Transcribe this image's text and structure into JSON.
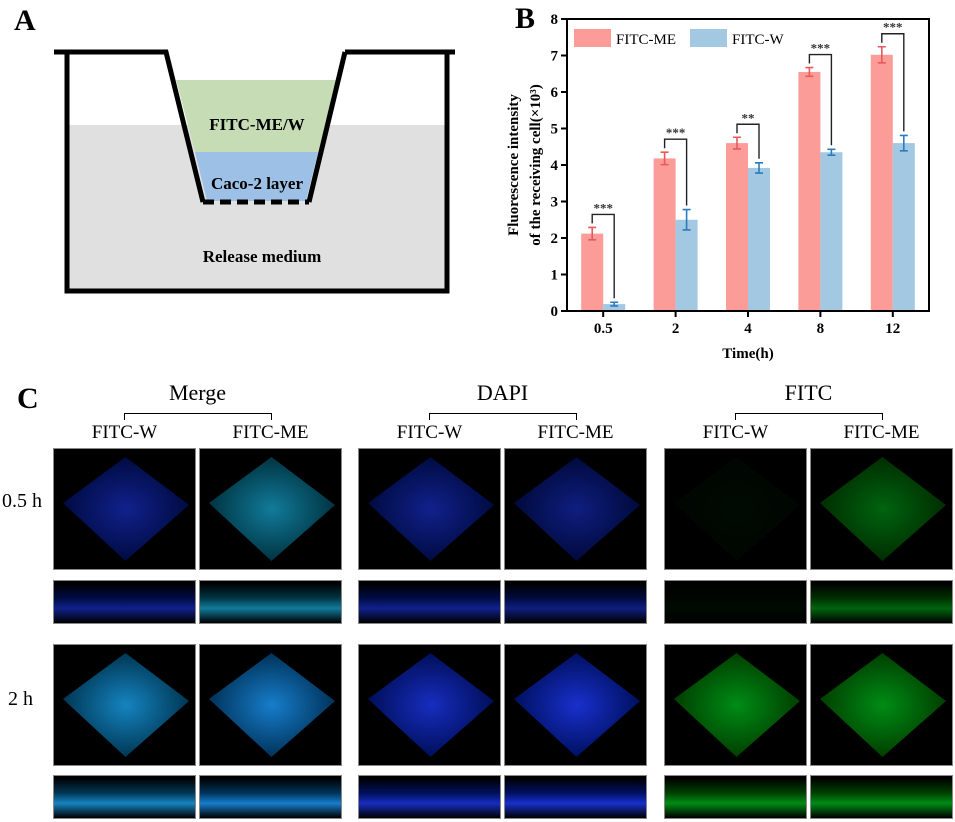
{
  "panel_a": {
    "letter": "A",
    "labels": {
      "donor": "FITC-ME/W",
      "cells": "Caco-2 layer",
      "receiver": "Release medium"
    },
    "colors": {
      "donor": "#c5dcb5",
      "cells": "#9dc0e6",
      "receiver": "#e0e0e0"
    }
  },
  "panel_b": {
    "letter": "B"
  },
  "chart_data": {
    "type": "bar",
    "categories": [
      "0.5",
      "2",
      "4",
      "8",
      "12"
    ],
    "series": [
      {
        "name": "FITC-ME",
        "color": "#fb9c98",
        "errcolor": "#e8595a",
        "values": [
          2.12,
          4.18,
          4.6,
          6.55,
          7.02
        ],
        "errors": [
          0.17,
          0.17,
          0.16,
          0.12,
          0.22
        ]
      },
      {
        "name": "FITC-W",
        "color": "#a3c8e2",
        "errcolor": "#2a7bbf",
        "values": [
          0.19,
          2.5,
          3.92,
          4.35,
          4.6
        ],
        "errors": [
          0.05,
          0.28,
          0.14,
          0.08,
          0.21
        ]
      }
    ],
    "significance": [
      "***",
      "***",
      "**",
      "***",
      "***"
    ],
    "xlabel": "Time(h)",
    "ylabel": [
      "Fluorescence intensity",
      "of the receiving cell(×10³)"
    ],
    "ylim": [
      0,
      8
    ],
    "yticks": [
      "0",
      "1",
      "2",
      "3",
      "4",
      "5",
      "6",
      "7",
      "8"
    ],
    "grid": false,
    "legend": "top-left"
  },
  "panel_c": {
    "letter": "C",
    "groups": [
      {
        "label": "Merge",
        "subs": [
          "FITC-W",
          "FITC-ME"
        ]
      },
      {
        "label": "DAPI",
        "subs": [
          "FITC-W",
          "FITC-ME"
        ]
      },
      {
        "label": "FITC",
        "subs": [
          "FITC-W",
          "FITC-ME"
        ]
      }
    ],
    "rows": [
      {
        "label": "0.5 h",
        "tints": [
          {
            "blue": 0.55,
            "green": 0.0
          },
          {
            "blue": 0.55,
            "green": 0.45
          },
          {
            "blue": 0.55,
            "green": 0.0
          },
          {
            "blue": 0.5,
            "green": 0.0
          },
          {
            "blue": 0.0,
            "green": 0.05
          },
          {
            "blue": 0.0,
            "green": 0.5
          }
        ]
      },
      {
        "label": "2 h",
        "tints": [
          {
            "blue": 0.7,
            "green": 0.45
          },
          {
            "blue": 0.75,
            "green": 0.4
          },
          {
            "blue": 0.75,
            "green": 0.0
          },
          {
            "blue": 0.8,
            "green": 0.0
          },
          {
            "blue": 0.0,
            "green": 0.7
          },
          {
            "blue": 0.0,
            "green": 0.7
          }
        ]
      }
    ]
  }
}
